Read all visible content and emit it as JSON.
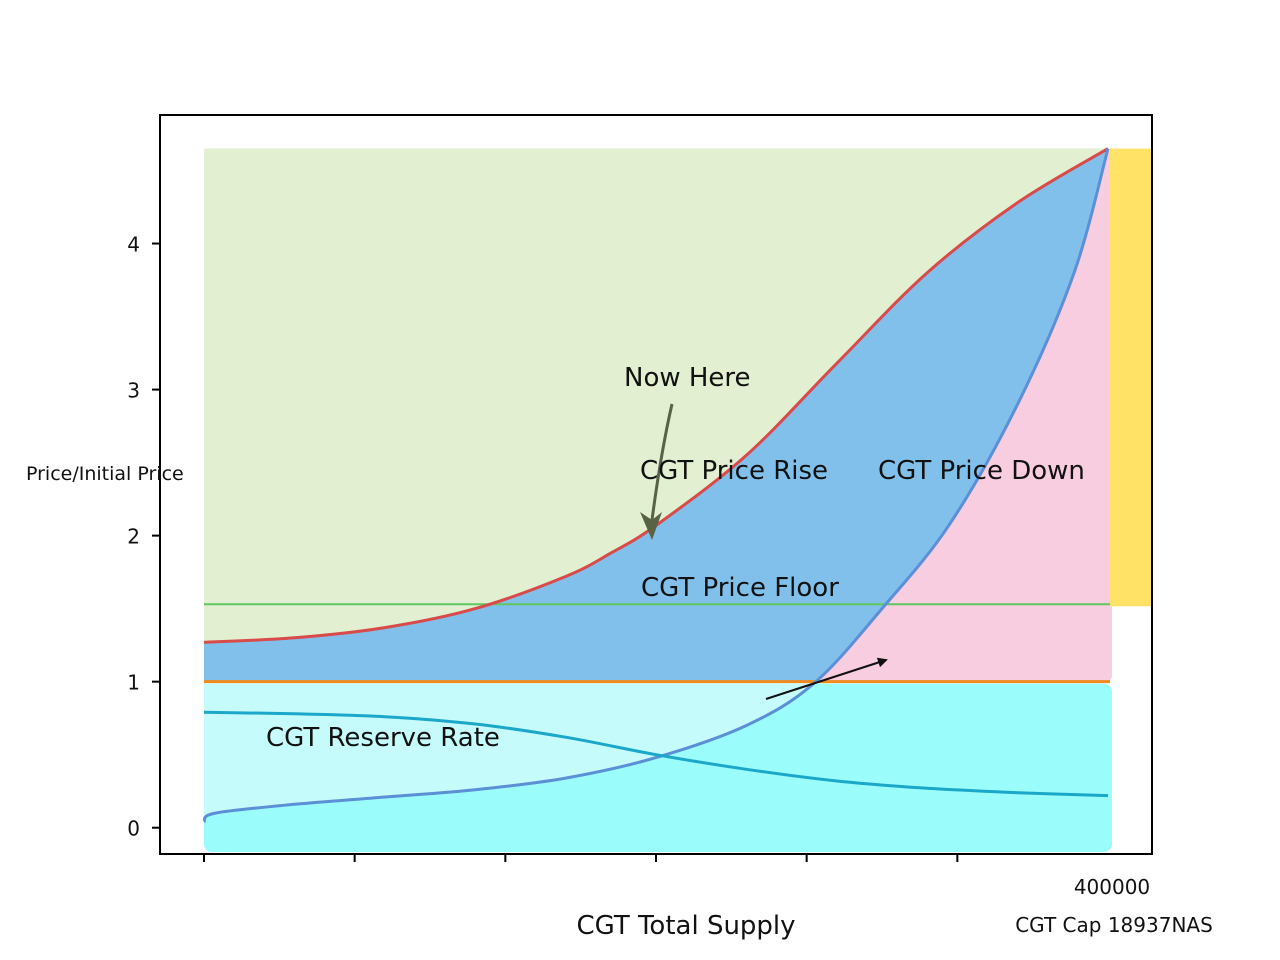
{
  "chart_data": {
    "type": "area",
    "ylabel": "Price/Initial Price",
    "xlabel": "CGT Total Supply",
    "x_range": [
      0,
      400000
    ],
    "ylim": [
      -0.18,
      4.88
    ],
    "y_ticks": [
      0,
      1,
      2,
      3,
      4
    ],
    "x_tick_positions": [
      0,
      66667,
      133333,
      200000,
      266667,
      333333
    ],
    "x_end_label": "400000",
    "cap_label": "CGT Cap 18937NAS",
    "horizontal_lines": {
      "initial_price": 1.0,
      "price_floor": 1.53
    },
    "annotations": {
      "now_here": "Now Here",
      "price_rise": "CGT Price Rise",
      "price_down": "CGT Price Down",
      "price_floor": "CGT Price Floor",
      "reserve_rate": "CGT Reserve Rate"
    },
    "series": [
      {
        "name": "CGT Price Rise",
        "color": "#d94a4a",
        "x": [
          0,
          40000,
          80000,
          120000,
          160000,
          180000,
          200000,
          240000,
          280000,
          320000,
          360000,
          400000
        ],
        "y": [
          1.27,
          1.3,
          1.37,
          1.5,
          1.72,
          1.88,
          2.07,
          2.55,
          3.18,
          3.8,
          4.28,
          4.65
        ]
      },
      {
        "name": "CGT Price Down",
        "color": "#5b8fd6",
        "x": [
          0,
          5000,
          40000,
          80000,
          120000,
          160000,
          200000,
          240000,
          270000,
          300000,
          330000,
          360000,
          385000,
          400000
        ],
        "y": [
          0.04,
          0.1,
          0.16,
          0.21,
          0.26,
          0.34,
          0.48,
          0.7,
          0.99,
          1.5,
          2.08,
          2.9,
          3.8,
          4.65
        ]
      },
      {
        "name": "CGT Reserve Rate",
        "color": "#1aa7c9",
        "x": [
          0,
          40000,
          80000,
          120000,
          160000,
          200000,
          240000,
          280000,
          320000,
          360000,
          400000
        ],
        "y": [
          0.79,
          0.78,
          0.76,
          0.71,
          0.62,
          0.5,
          0.4,
          0.32,
          0.27,
          0.24,
          0.22
        ]
      }
    ],
    "colors": {
      "green_region": "#e2efd0",
      "blue_region": "#82c0ec",
      "pink_region": "#f8cde0",
      "cyan_light": "#c6fbfb",
      "cyan_strong": "#9bfcfc",
      "yellow_bar": "#ffe266",
      "floor_line": "#5fc75f",
      "initial_line": "#ee8a1e",
      "arrow": "#5a6246"
    }
  }
}
